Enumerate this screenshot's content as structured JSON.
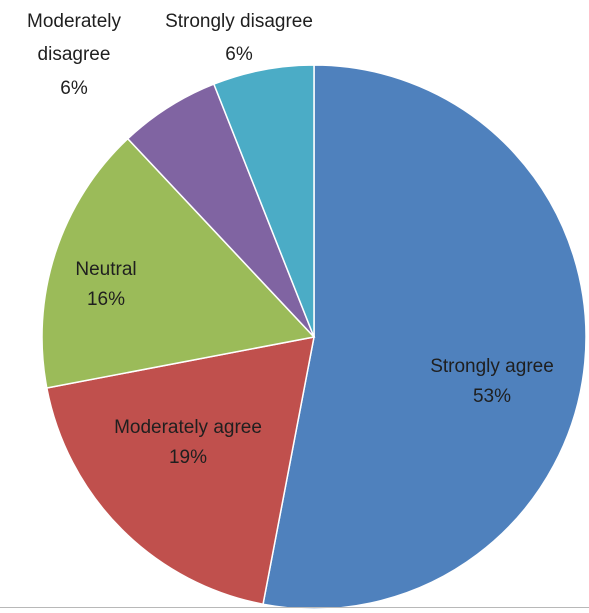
{
  "chart_data": {
    "type": "pie",
    "title": "",
    "start_angle_deg": 0,
    "direction": "clockwise",
    "slices": [
      {
        "key": "strongly_agree",
        "label": "Strongly agree",
        "value": 53,
        "display": "53%",
        "color": "#4f81bd"
      },
      {
        "key": "moderately_agree",
        "label": "Moderately agree",
        "value": 19,
        "display": "19%",
        "color": "#c0504d"
      },
      {
        "key": "neutral",
        "label": "Neutral",
        "value": 16,
        "display": "16%",
        "color": "#9bbb59"
      },
      {
        "key": "moderately_disagree",
        "label": "Moderately disagree",
        "label_lines": [
          "Moderately",
          "disagree"
        ],
        "value": 6,
        "display": "6%",
        "color": "#8064a2"
      },
      {
        "key": "strongly_disagree",
        "label": "Strongly disagree",
        "value": 6,
        "display": "6%",
        "color": "#4bacc6"
      }
    ],
    "legend": "none"
  }
}
